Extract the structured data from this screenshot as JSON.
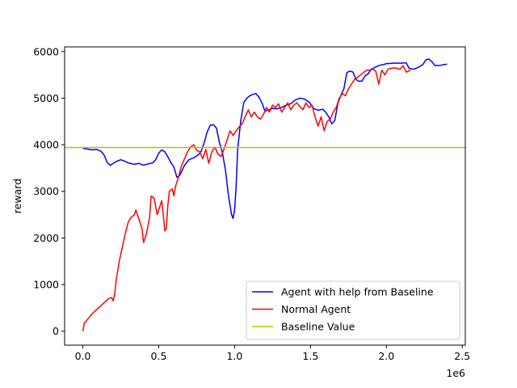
{
  "chart_data": {
    "type": "line",
    "title": "",
    "xlabel": "",
    "ylabel": "reward",
    "x_offset_label": "1e6",
    "xlim": [
      -0.12,
      2.52
    ],
    "ylim": [
      -300,
      6100
    ],
    "x_ticks": [
      0.0,
      0.5,
      1.0,
      1.5,
      2.0,
      2.5
    ],
    "x_tick_labels": [
      "0.0",
      "0.5",
      "1.0",
      "1.5",
      "2.0",
      "2.5"
    ],
    "y_ticks": [
      0,
      1000,
      2000,
      3000,
      4000,
      5000,
      6000
    ],
    "y_tick_labels": [
      "0",
      "1000",
      "2000",
      "3000",
      "4000",
      "5000",
      "6000"
    ],
    "grid": false,
    "legend_position": "lower-right",
    "series": [
      {
        "name": "Agent with help from Baseline",
        "color": "#0000ff",
        "points": [
          [
            0.0,
            3920
          ],
          [
            0.03,
            3910
          ],
          [
            0.06,
            3890
          ],
          [
            0.09,
            3900
          ],
          [
            0.12,
            3860
          ],
          [
            0.14,
            3780
          ],
          [
            0.16,
            3620
          ],
          [
            0.18,
            3560
          ],
          [
            0.2,
            3600
          ],
          [
            0.22,
            3640
          ],
          [
            0.25,
            3680
          ],
          [
            0.28,
            3640
          ],
          [
            0.31,
            3600
          ],
          [
            0.34,
            3580
          ],
          [
            0.37,
            3600
          ],
          [
            0.4,
            3560
          ],
          [
            0.43,
            3590
          ],
          [
            0.46,
            3610
          ],
          [
            0.48,
            3680
          ],
          [
            0.5,
            3820
          ],
          [
            0.52,
            3890
          ],
          [
            0.54,
            3850
          ],
          [
            0.56,
            3740
          ],
          [
            0.58,
            3620
          ],
          [
            0.6,
            3520
          ],
          [
            0.62,
            3300
          ],
          [
            0.64,
            3350
          ],
          [
            0.67,
            3560
          ],
          [
            0.7,
            3680
          ],
          [
            0.73,
            3720
          ],
          [
            0.76,
            3780
          ],
          [
            0.78,
            3860
          ],
          [
            0.8,
            4050
          ],
          [
            0.82,
            4280
          ],
          [
            0.84,
            4420
          ],
          [
            0.86,
            4430
          ],
          [
            0.88,
            4360
          ],
          [
            0.9,
            4050
          ],
          [
            0.92,
            3820
          ],
          [
            0.94,
            3450
          ],
          [
            0.96,
            2900
          ],
          [
            0.98,
            2500
          ],
          [
            0.99,
            2420
          ],
          [
            1.0,
            2600
          ],
          [
            1.01,
            3100
          ],
          [
            1.02,
            3900
          ],
          [
            1.04,
            4500
          ],
          [
            1.06,
            4900
          ],
          [
            1.08,
            5000
          ],
          [
            1.1,
            5050
          ],
          [
            1.12,
            5080
          ],
          [
            1.14,
            5100
          ],
          [
            1.16,
            5020
          ],
          [
            1.18,
            4900
          ],
          [
            1.2,
            4720
          ],
          [
            1.22,
            4740
          ],
          [
            1.25,
            4780
          ],
          [
            1.28,
            4770
          ],
          [
            1.31,
            4800
          ],
          [
            1.34,
            4850
          ],
          [
            1.37,
            4880
          ],
          [
            1.4,
            4960
          ],
          [
            1.43,
            5000
          ],
          [
            1.46,
            4980
          ],
          [
            1.49,
            4920
          ],
          [
            1.52,
            4780
          ],
          [
            1.55,
            4740
          ],
          [
            1.58,
            4760
          ],
          [
            1.6,
            4700
          ],
          [
            1.62,
            4600
          ],
          [
            1.64,
            4450
          ],
          [
            1.66,
            4520
          ],
          [
            1.68,
            4880
          ],
          [
            1.7,
            5060
          ],
          [
            1.72,
            5200
          ],
          [
            1.73,
            5380
          ],
          [
            1.74,
            5550
          ],
          [
            1.76,
            5580
          ],
          [
            1.78,
            5560
          ],
          [
            1.8,
            5400
          ],
          [
            1.82,
            5360
          ],
          [
            1.84,
            5370
          ],
          [
            1.86,
            5480
          ],
          [
            1.88,
            5520
          ],
          [
            1.9,
            5620
          ],
          [
            1.92,
            5650
          ],
          [
            1.95,
            5700
          ],
          [
            1.98,
            5720
          ],
          [
            2.0,
            5740
          ],
          [
            2.05,
            5750
          ],
          [
            2.1,
            5750
          ],
          [
            2.13,
            5760
          ],
          [
            2.15,
            5640
          ],
          [
            2.18,
            5620
          ],
          [
            2.21,
            5660
          ],
          [
            2.24,
            5720
          ],
          [
            2.26,
            5820
          ],
          [
            2.28,
            5840
          ],
          [
            2.3,
            5780
          ],
          [
            2.32,
            5700
          ],
          [
            2.35,
            5700
          ],
          [
            2.38,
            5720
          ],
          [
            2.4,
            5730
          ]
        ]
      },
      {
        "name": "Normal Agent",
        "color": "#ff0000",
        "points": [
          [
            0.0,
            0
          ],
          [
            0.01,
            180
          ],
          [
            0.02,
            200
          ],
          [
            0.03,
            250
          ],
          [
            0.05,
            330
          ],
          [
            0.07,
            400
          ],
          [
            0.09,
            460
          ],
          [
            0.11,
            520
          ],
          [
            0.13,
            580
          ],
          [
            0.15,
            640
          ],
          [
            0.17,
            700
          ],
          [
            0.19,
            720
          ],
          [
            0.2,
            650
          ],
          [
            0.21,
            800
          ],
          [
            0.22,
            1100
          ],
          [
            0.24,
            1500
          ],
          [
            0.26,
            1800
          ],
          [
            0.28,
            2100
          ],
          [
            0.3,
            2350
          ],
          [
            0.32,
            2450
          ],
          [
            0.34,
            2500
          ],
          [
            0.35,
            2600
          ],
          [
            0.36,
            2500
          ],
          [
            0.38,
            2300
          ],
          [
            0.39,
            2200
          ],
          [
            0.4,
            1900
          ],
          [
            0.42,
            2100
          ],
          [
            0.44,
            2450
          ],
          [
            0.45,
            2900
          ],
          [
            0.47,
            2850
          ],
          [
            0.49,
            2500
          ],
          [
            0.51,
            2700
          ],
          [
            0.52,
            2800
          ],
          [
            0.53,
            2500
          ],
          [
            0.54,
            2150
          ],
          [
            0.55,
            2200
          ],
          [
            0.56,
            2700
          ],
          [
            0.57,
            3000
          ],
          [
            0.59,
            3050
          ],
          [
            0.6,
            2900
          ],
          [
            0.61,
            3100
          ],
          [
            0.63,
            3300
          ],
          [
            0.65,
            3550
          ],
          [
            0.67,
            3700
          ],
          [
            0.69,
            3850
          ],
          [
            0.71,
            3950
          ],
          [
            0.73,
            4000
          ],
          [
            0.75,
            3880
          ],
          [
            0.77,
            3850
          ],
          [
            0.79,
            3700
          ],
          [
            0.81,
            3900
          ],
          [
            0.83,
            3600
          ],
          [
            0.85,
            3850
          ],
          [
            0.87,
            3950
          ],
          [
            0.89,
            3800
          ],
          [
            0.91,
            3750
          ],
          [
            0.93,
            3900
          ],
          [
            0.95,
            4100
          ],
          [
            0.97,
            4300
          ],
          [
            0.99,
            4200
          ],
          [
            1.01,
            4300
          ],
          [
            1.03,
            4380
          ],
          [
            1.05,
            4450
          ],
          [
            1.07,
            4600
          ],
          [
            1.09,
            4750
          ],
          [
            1.11,
            4600
          ],
          [
            1.13,
            4700
          ],
          [
            1.15,
            4600
          ],
          [
            1.17,
            4550
          ],
          [
            1.19,
            4650
          ],
          [
            1.21,
            4800
          ],
          [
            1.23,
            4700
          ],
          [
            1.25,
            4850
          ],
          [
            1.27,
            4800
          ],
          [
            1.29,
            4880
          ],
          [
            1.31,
            4700
          ],
          [
            1.33,
            4800
          ],
          [
            1.35,
            4900
          ],
          [
            1.37,
            4750
          ],
          [
            1.39,
            4850
          ],
          [
            1.41,
            4900
          ],
          [
            1.43,
            4820
          ],
          [
            1.45,
            4750
          ],
          [
            1.47,
            4900
          ],
          [
            1.49,
            4800
          ],
          [
            1.51,
            4850
          ],
          [
            1.53,
            4600
          ],
          [
            1.55,
            4400
          ],
          [
            1.57,
            4600
          ],
          [
            1.59,
            4300
          ],
          [
            1.61,
            4500
          ],
          [
            1.63,
            4550
          ],
          [
            1.65,
            4700
          ],
          [
            1.67,
            4800
          ],
          [
            1.69,
            5000
          ],
          [
            1.71,
            5100
          ],
          [
            1.73,
            5050
          ],
          [
            1.75,
            5200
          ],
          [
            1.77,
            5300
          ],
          [
            1.79,
            5400
          ],
          [
            1.81,
            5450
          ],
          [
            1.83,
            5500
          ],
          [
            1.85,
            5550
          ],
          [
            1.87,
            5600
          ],
          [
            1.89,
            5600
          ],
          [
            1.91,
            5620
          ],
          [
            1.93,
            5580
          ],
          [
            1.95,
            5300
          ],
          [
            1.97,
            5600
          ],
          [
            1.99,
            5500
          ],
          [
            2.01,
            5620
          ],
          [
            2.03,
            5640
          ],
          [
            2.05,
            5650
          ],
          [
            2.07,
            5640
          ],
          [
            2.09,
            5620
          ],
          [
            2.11,
            5700
          ],
          [
            2.13,
            5560
          ],
          [
            2.16,
            5600
          ]
        ]
      },
      {
        "name": "Baseline Value",
        "color": "#bfbf00",
        "hline": 3940
      }
    ]
  }
}
